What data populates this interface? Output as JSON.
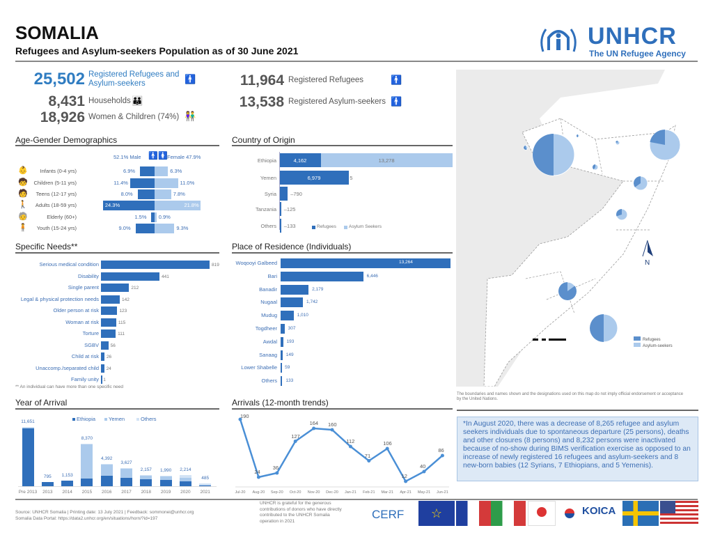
{
  "header": {
    "title": "SOMALIA",
    "subtitle": "Refugees and Asylum-seekers Population as of 30 June 2021",
    "logo_text": "UNHCR",
    "logo_tagline": "The UN Refugee Agency"
  },
  "kpis": {
    "total": {
      "value": "25,502",
      "label": "Registered Refugees and Asylum-seekers",
      "icon": "person-icon"
    },
    "households": {
      "value": "8,431",
      "label": "Households",
      "icon": "family-icon"
    },
    "women_children": {
      "value": "18,926",
      "label": "Women & Children (74%)",
      "icon": "woman-child-icon"
    },
    "refugees": {
      "value": "11,964",
      "label": "Registered Refugees",
      "icon": "person-icon"
    },
    "asylum": {
      "value": "13,538",
      "label": "Registered Asylum-seekers",
      "icon": "person-icon"
    }
  },
  "sections": {
    "age": "Age-Gender Demographics",
    "origin": "Country of Origin",
    "needs": "Specific Needs**",
    "residence": "Place of Residence (Individuals)",
    "year": "Year of Arrival",
    "arrivals": "Arrivals (12-month trends)"
  },
  "age_legend": {
    "male": "52.1% Male",
    "female": "Female 47.9%"
  },
  "needs_footnote": "** An individual can have more than one specific need",
  "map": {
    "disclaimer": "The boundaries and names shown and the designations used on this map do not imply official endorsement or acceptance by the United Nations.",
    "legend": [
      "Refugees",
      "Asylum-seekers"
    ],
    "north": "N",
    "colors": {
      "refugees": "#5b8fcc",
      "asylum": "#abcaec"
    }
  },
  "note": "*In August 2020, there was a decrease of 8,265 refugee and asylum seekers individuals due to spontaneous departure (25 persons), deaths and other closures (8 persons) and 8,232 persons were inactivated because of no-show during BIMS verification exercise as opposed to an increase of newly registered 16 refugees and asylum-seekers and 8 new-born babies (12 Syrians, 7 Ethiopians, and 5 Yemenis).",
  "footer": {
    "source": "Source: UNHCR Somalia  |  Printing date: 13 July 2021  |  Feedback: sommonei@unhcr.org",
    "portal": "Somalia Data Portal: https://data2.unhcr.org/en/situations/horn/?id=197",
    "donors": "UNHCR is grateful for the generous contributions of donors who have directly contributed to the UNHCR Somalia operation in 2021",
    "donor_logos": [
      "CERF",
      "European Union",
      "France",
      "Italy",
      "Japan",
      "Korea",
      "KOICA",
      "Sweden",
      "United States"
    ]
  },
  "colors": {
    "dark": "#2f6fbb",
    "light": "#abcaec",
    "text_blue": "#3c6eb4"
  },
  "chart_data": [
    {
      "type": "bar",
      "title": "Age-Gender Demographics",
      "categories": [
        "Infants (0-4 yrs)",
        "Children (5-11 yrs)",
        "Teens (12-17 yrs)",
        "Adults (18-59 yrs)",
        "Elderly (60+)",
        "Youth (15-24 yrs)"
      ],
      "icons": [
        "infant-icon",
        "child-icon",
        "teen-icon",
        "adult-icon",
        "elderly-icon",
        "youth-icon"
      ],
      "series": [
        {
          "name": "Male",
          "values": [
            6.9,
            11.4,
            8.0,
            24.3,
            1.5,
            9.0
          ]
        },
        {
          "name": "Female",
          "values": [
            6.3,
            11.0,
            7.8,
            21.8,
            0.9,
            9.3
          ]
        }
      ],
      "unit": "%"
    },
    {
      "type": "bar",
      "title": "Country of Origin",
      "categories": [
        "Ethiopia",
        "Yemen",
        "Syria",
        "Tanzania",
        "Others"
      ],
      "series": [
        {
          "name": "Refugees",
          "values": [
            4162,
            6979,
            790,
            125,
            133
          ]
        },
        {
          "name": "Asylum Seekers",
          "values": [
            13278,
            5,
            0,
            0,
            0
          ]
        }
      ],
      "legend": "bottom"
    },
    {
      "type": "bar",
      "title": "Specific Needs**",
      "categories": [
        "Serious medical condition",
        "Disability",
        "Single parent",
        "Legal & physical protection needs",
        "Older person at risk",
        "Woman at risk",
        "Torture",
        "SGBV",
        "Child at risk",
        "Unaccomp./separated child",
        "Family unity"
      ],
      "values": [
        819,
        441,
        212,
        142,
        123,
        115,
        111,
        56,
        26,
        24,
        1
      ]
    },
    {
      "type": "bar",
      "title": "Place of Residence (Individuals)",
      "categories": [
        "Woqooyi Galbeed",
        "Bari",
        "Banadir",
        "Nugaal",
        "Mudug",
        "Togdheer",
        "Awdal",
        "Sanaag",
        "Lower Shabelle",
        "Others"
      ],
      "values": [
        13264,
        6446,
        2179,
        1742,
        1010,
        307,
        193,
        149,
        59,
        133
      ]
    },
    {
      "type": "bar",
      "title": "Year of Arrival",
      "categories": [
        "Pre 2013",
        "2013",
        "2014",
        "2015",
        "2016",
        "2017",
        "2018",
        "2019",
        "2020",
        "2021"
      ],
      "totals": [
        11651,
        795,
        1153,
        8370,
        4392,
        3627,
        2157,
        1990,
        2214,
        485
      ],
      "series": [
        {
          "name": "Ethiopia",
          "values": [
            11500,
            795,
            1153,
            1500,
            2000,
            1700,
            1350,
            1300,
            950,
            100
          ]
        },
        {
          "name": "Yemen",
          "values": [
            50,
            0,
            0,
            6800,
            2300,
            1880,
            750,
            640,
            700,
            200
          ]
        },
        {
          "name": "Others",
          "values": [
            101,
            0,
            0,
            70,
            92,
            47,
            57,
            50,
            564,
            185
          ]
        }
      ],
      "legend": "top"
    },
    {
      "type": "line",
      "title": "Arrivals (12-month trends)",
      "categories": [
        "Jul-20",
        "Aug-20",
        "Sep-20",
        "Oct-20",
        "Nov-20",
        "Dec-20",
        "Jan-21",
        "Feb-21",
        "Mar-21",
        "Apr-21",
        "May-21",
        "Jun-21"
      ],
      "values": [
        190,
        24,
        36,
        127,
        164,
        160,
        112,
        71,
        106,
        12,
        40,
        86
      ]
    }
  ]
}
